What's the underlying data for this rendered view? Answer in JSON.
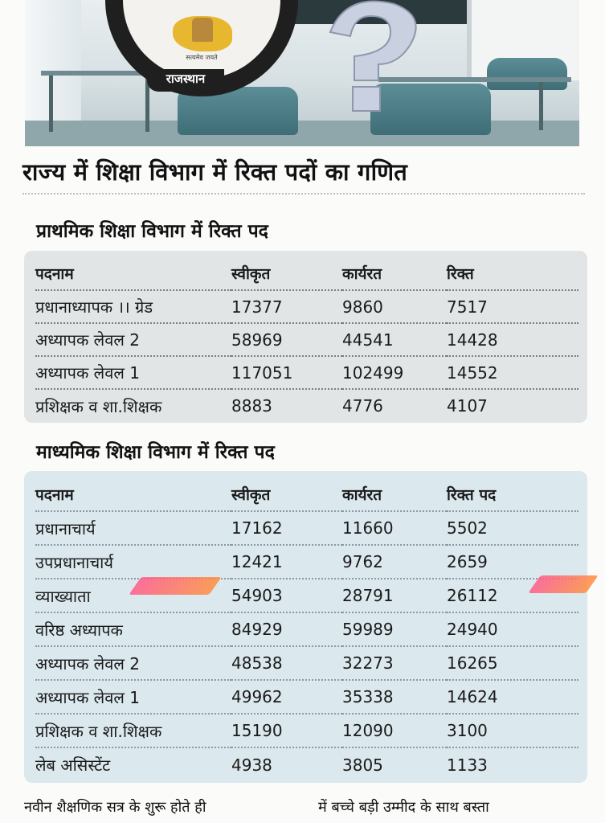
{
  "header": {
    "emblem_label": "राजस्थान",
    "emblem_motto": "सत्यमेव जयते"
  },
  "page_title": "राज्य में शिक्षा विभाग में रिक्त पदों का गणित",
  "primary": {
    "heading": "प्राथमिक शिक्षा विभाग में रिक्त पद",
    "columns": [
      "पदनाम",
      "स्वीकृत",
      "कार्यरत",
      "रिक्त"
    ],
    "rows": [
      [
        "प्रधानाध्यापक ।। ग्रेड",
        "17377",
        "9860",
        "7517"
      ],
      [
        "अध्यापक लेवल 2",
        "58969",
        "44541",
        "14428"
      ],
      [
        "अध्यापक लेवल 1",
        "117051",
        "102499",
        "14552"
      ],
      [
        "प्रशिक्षक व शा.शिक्षक",
        "8883",
        "4776",
        "4107"
      ]
    ]
  },
  "secondary": {
    "heading": "माध्यमिक शिक्षा विभाग में रिक्त पद",
    "columns": [
      "पदनाम",
      "स्वीकृत",
      "कार्यरत",
      "रिक्त पद"
    ],
    "rows": [
      [
        "प्रधानाचार्य",
        "17162",
        "11660",
        "5502"
      ],
      [
        "उपप्रधानाचार्य",
        "12421",
        "9762",
        "2659"
      ],
      [
        "व्याख्याता",
        "54903",
        "28791",
        "26112"
      ],
      [
        "वरिष्ठ अध्यापक",
        "84929",
        "59989",
        "24940"
      ],
      [
        "अध्यापक लेवल 2",
        "48538",
        "32273",
        "16265"
      ],
      [
        "अध्यापक लेवल 1",
        "49962",
        "35338",
        "14624"
      ],
      [
        "प्रशिक्षक व शा.शिक्षक",
        "15190",
        "12090",
        "3100"
      ],
      [
        "लेब असिस्टेंट",
        "4938",
        "3805",
        "1133"
      ]
    ]
  },
  "footer": {
    "left": "नवीन शैक्षणिक सत्र के शुरू होते ही",
    "right": "में बच्चे बड़ी उम्मीद के साथ बस्ता"
  },
  "colors": {
    "primary_panel": "#e1e5e6",
    "secondary_panel": "#dbe8ee",
    "highlight_marker": "#ff6f6f"
  }
}
